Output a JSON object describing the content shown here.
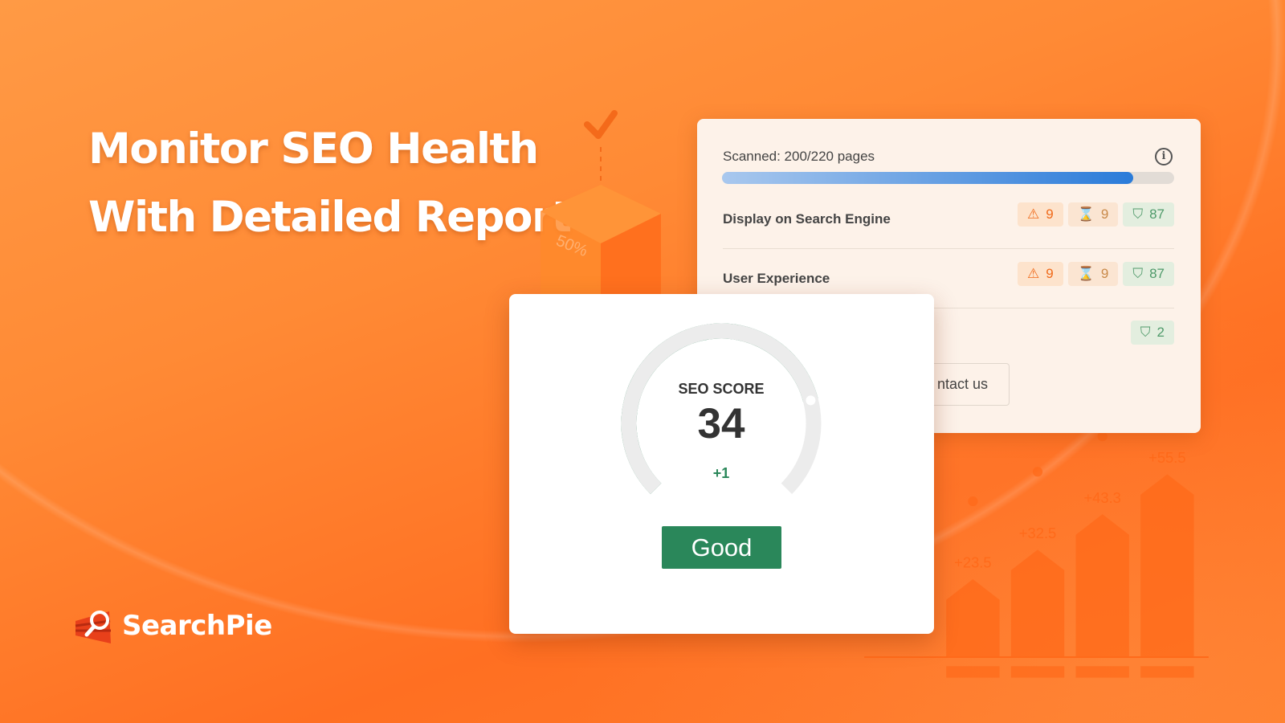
{
  "headline": {
    "line1": "Monitor SEO Health",
    "line2": "With Detailed Report"
  },
  "brand": {
    "name": "SearchPie",
    "logo_icon": "magnifier-pie-icon"
  },
  "decor": {
    "cube_label": "50%",
    "check_icon": "checkmark-icon"
  },
  "report": {
    "scanned_label": "Scanned: 200/220 pages",
    "scan_progress": 0.909,
    "info_icon": "info-icon",
    "rows": [
      {
        "label": "Display on Search Engine",
        "warning": "9",
        "pending": "9",
        "passed": "87"
      },
      {
        "label": "User Experience",
        "warning": "9",
        "pending": "9",
        "passed": "87"
      },
      {
        "label": "",
        "passed": "2"
      }
    ],
    "contact_label": "ntact us"
  },
  "score_card": {
    "title": "SEO SCORE",
    "value": "34",
    "change": "+1",
    "status": "Good",
    "gauge_fill": 0.78
  },
  "chart_data": {
    "type": "bar",
    "values": [
      23.5,
      32.5,
      43.3,
      55.5
    ],
    "labels": [
      "+23.5",
      "+32.5",
      "+43.3",
      "+55.5"
    ]
  },
  "colors": {
    "accent": "#ff7a1f",
    "good": "#2a875a",
    "progress": "#2a7bd9",
    "warning": "#f06a1a",
    "passed": "#4f9a6a"
  }
}
